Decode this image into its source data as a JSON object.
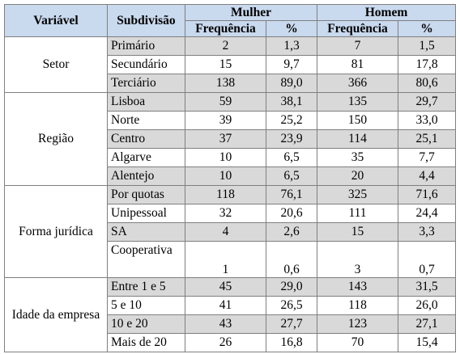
{
  "headers": {
    "variavel": "Variável",
    "subdivisao": "Subdivisão",
    "mulher": "Mulher",
    "homem": "Homem",
    "frequencia": "Frequência",
    "percent": "%"
  },
  "groups": [
    {
      "label": "Setor",
      "rows": [
        {
          "sub": "Primário",
          "mf": "2",
          "mp": "1,3",
          "hf": "7",
          "hp": "1,5"
        },
        {
          "sub": "Secundário",
          "mf": "15",
          "mp": "9,7",
          "hf": "81",
          "hp": "17,8"
        },
        {
          "sub": "Terciário",
          "mf": "138",
          "mp": "89,0",
          "hf": "366",
          "hp": "80,6"
        }
      ]
    },
    {
      "label": "Região",
      "rows": [
        {
          "sub": "Lisboa",
          "mf": "59",
          "mp": "38,1",
          "hf": "135",
          "hp": "29,7"
        },
        {
          "sub": "Norte",
          "mf": "39",
          "mp": "25,2",
          "hf": "150",
          "hp": "33,0"
        },
        {
          "sub": "Centro",
          "mf": "37",
          "mp": "23,9",
          "hf": "114",
          "hp": "25,1"
        },
        {
          "sub": "Algarve",
          "mf": "10",
          "mp": "6,5",
          "hf": "35",
          "hp": "7,7"
        },
        {
          "sub": "Alentejo",
          "mf": "10",
          "mp": "6,5",
          "hf": "20",
          "hp": "4,4"
        }
      ]
    },
    {
      "label": "Forma jurídica",
      "rows": [
        {
          "sub": "Por quotas",
          "mf": "118",
          "mp": "76,1",
          "hf": "325",
          "hp": "71,6"
        },
        {
          "sub": "Unipessoal",
          "mf": "32",
          "mp": "20,6",
          "hf": "111",
          "hp": "24,4"
        },
        {
          "sub": "SA",
          "mf": "4",
          "mp": "2,6",
          "hf": "15",
          "hp": "3,3"
        },
        {
          "sub": "Cooperativa",
          "mf": "1",
          "mp": "0,6",
          "hf": "3",
          "hp": "0,7"
        }
      ]
    },
    {
      "label": "Idade da empresa",
      "rows": [
        {
          "sub": "Entre 1 e 5",
          "mf": "45",
          "mp": "29,0",
          "hf": "143",
          "hp": "31,5"
        },
        {
          "sub": "5 e 10",
          "mf": "41",
          "mp": "26,5",
          "hf": "118",
          "hp": "26,0"
        },
        {
          "sub": "10 e 20",
          "mf": "43",
          "mp": "27,7",
          "hf": "123",
          "hp": "27,1"
        },
        {
          "sub": "Mais de 20",
          "mf": "26",
          "mp": "16,8",
          "hf": "70",
          "hp": "15,4"
        }
      ]
    }
  ]
}
